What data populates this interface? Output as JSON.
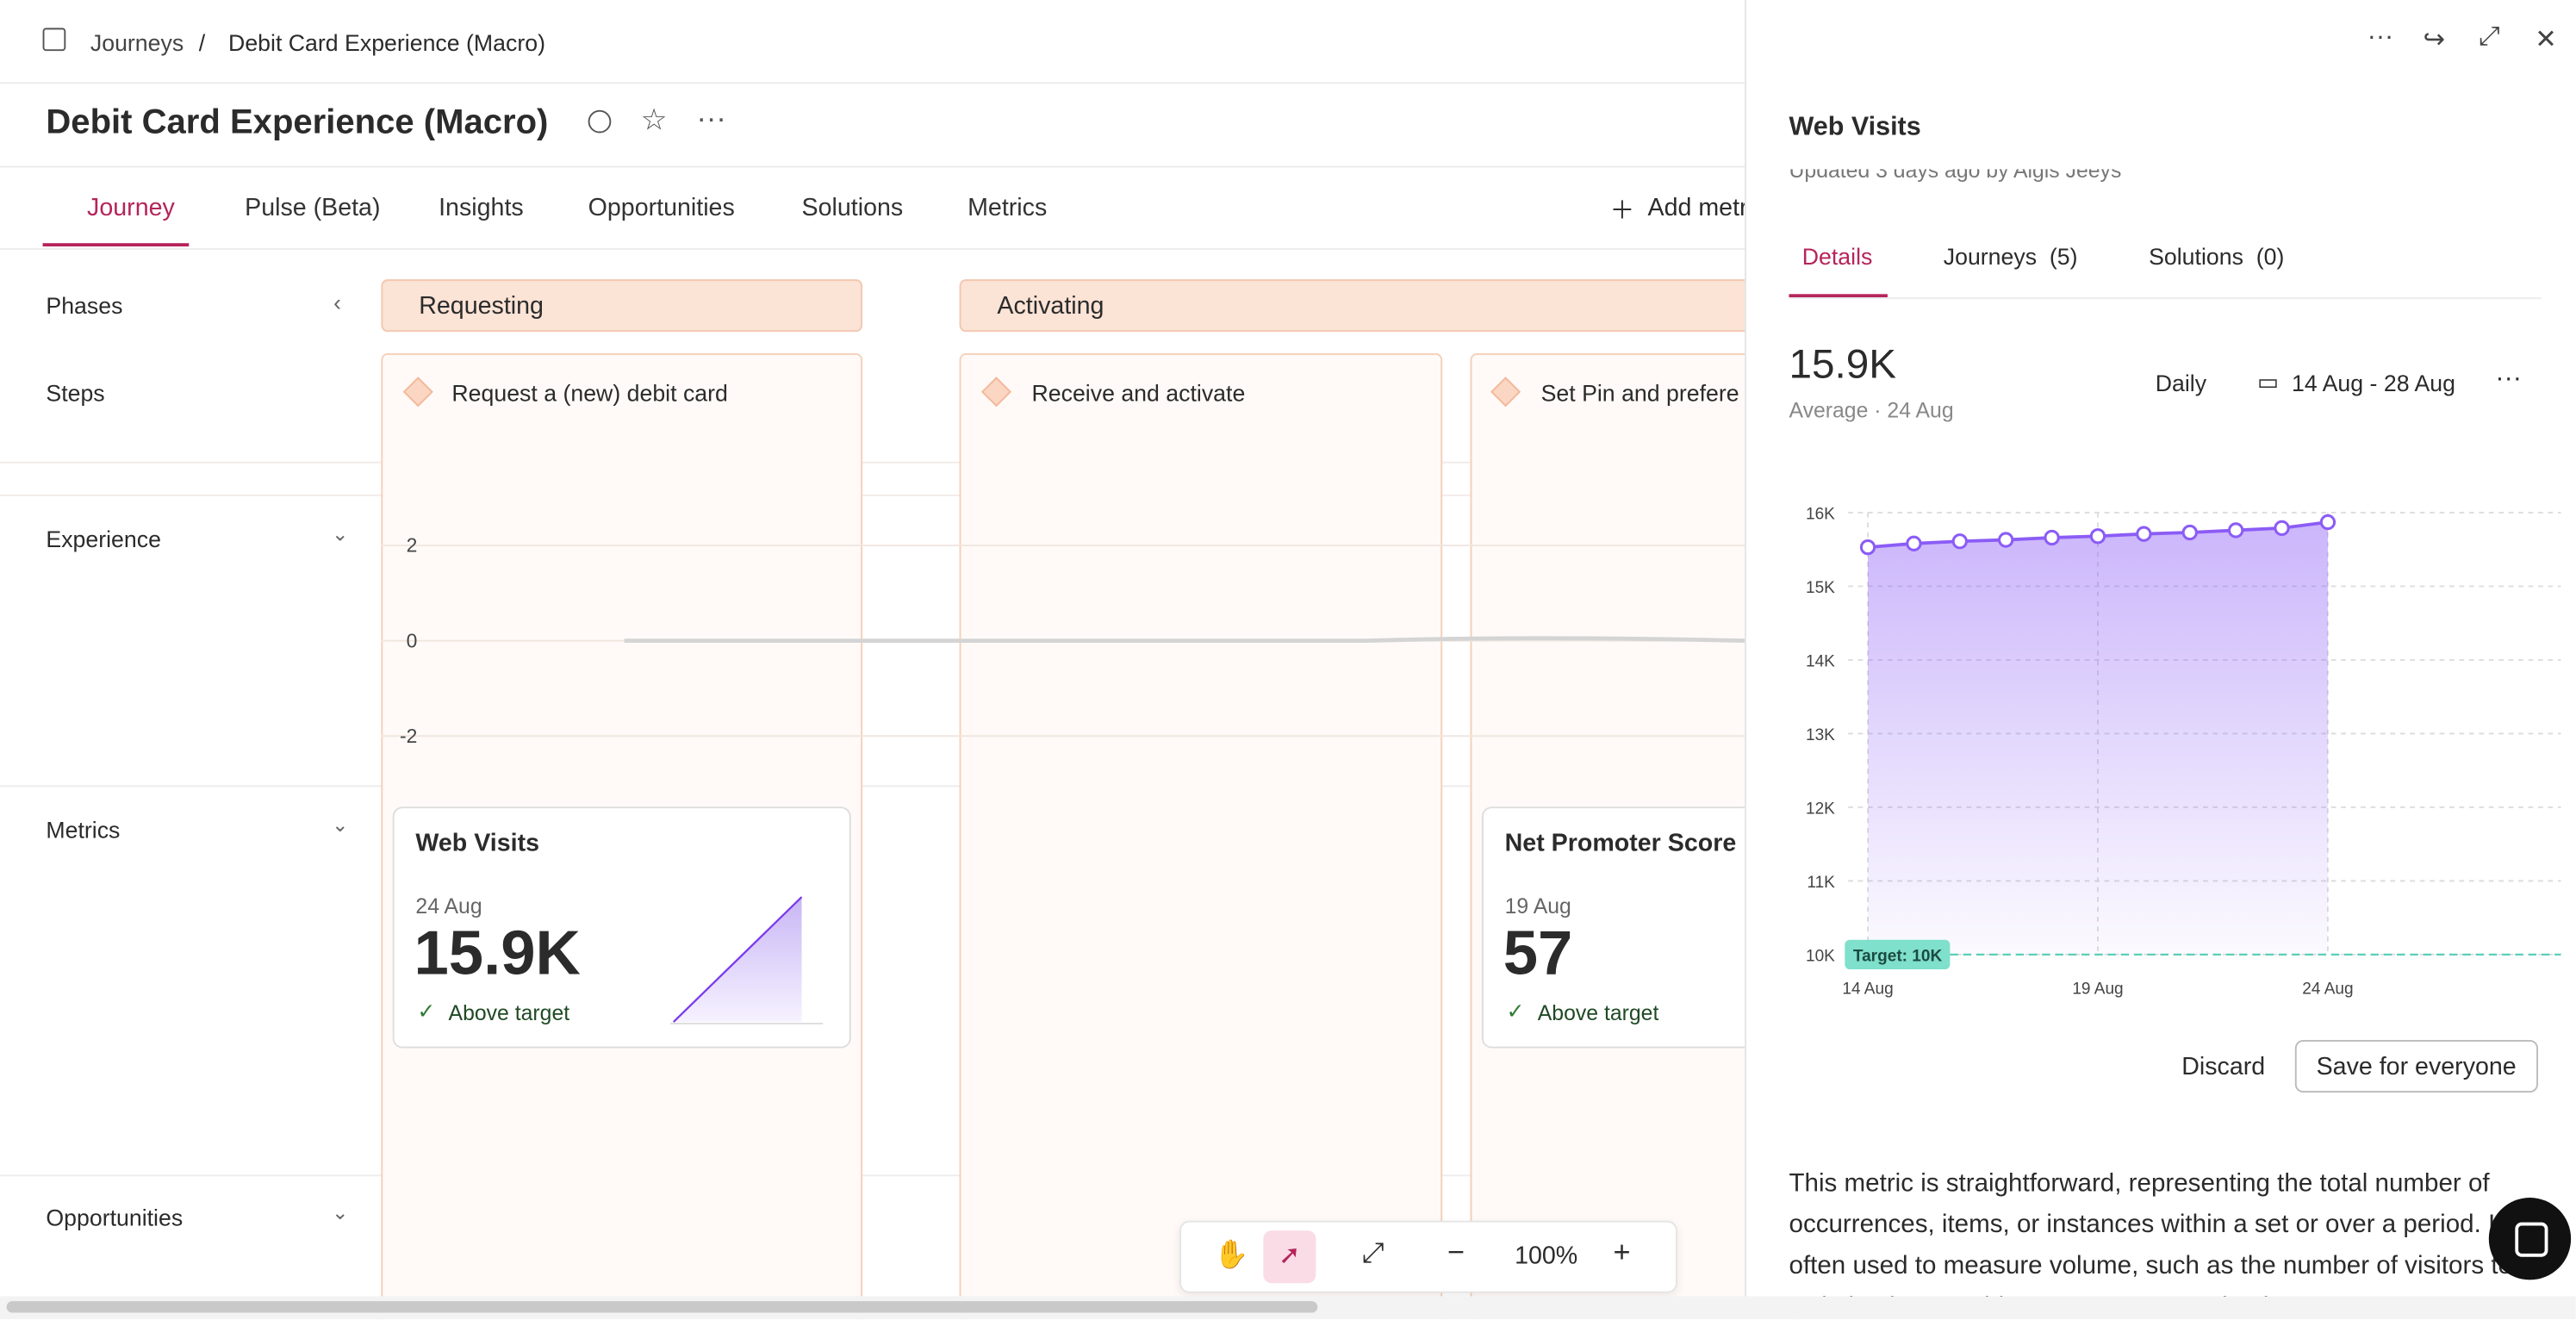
{
  "breadcrumb": [
    "Journeys",
    "Debit Card Experience (Macro)"
  ],
  "title": "Debit Card Experience (Macro)",
  "tabs": [
    "Journey",
    "Pulse (Beta)",
    "Insights",
    "Opportunities",
    "Solutions",
    "Metrics"
  ],
  "add_metric": "Add metr",
  "rows": {
    "phases": "Phases",
    "steps": "Steps",
    "experience": "Experience",
    "metrics": "Metrics",
    "opportunities": "Opportunities"
  },
  "phases": [
    "Requesting",
    "Activating"
  ],
  "steps": [
    "Request a (new) debit card",
    "Receive and activate",
    "Set Pin and prefere"
  ],
  "experience_ticks": [
    2,
    0,
    -2
  ],
  "metric_cards": [
    {
      "name": "Web Visits",
      "date": "24 Aug",
      "value": "15.9K",
      "status": "Above target"
    },
    {
      "name": "Net Promoter Score",
      "date": "19 Aug",
      "value": "57",
      "status": "Above target"
    }
  ],
  "zoom": "100%",
  "panel": {
    "title": "Web Visits",
    "updated": "Updated 3 days ago by Algis Jeeys",
    "tabs": [
      "Details",
      "Journeys  (5)",
      "Solutions  (0)"
    ],
    "summary": {
      "value": "15.9K",
      "caption": "Average · 24 Aug",
      "frequency": "Daily",
      "range": "14 Aug - 28 Aug"
    },
    "chart": {
      "type": "line",
      "categories": [
        "14 Aug",
        null,
        null,
        null,
        null,
        "19 Aug",
        null,
        null,
        null,
        null,
        "24 Aug"
      ],
      "values": [
        15530,
        15580,
        15610,
        15630,
        15660,
        15680,
        15710,
        15730,
        15760,
        15790,
        15870
      ],
      "color": "#8b5cf6",
      "ylim": [
        10000,
        16000
      ],
      "yticks": [
        {
          "value": 10000,
          "label": "10K"
        },
        {
          "value": 11000,
          "label": "11K"
        },
        {
          "value": 12000,
          "label": "12K"
        },
        {
          "value": 13000,
          "label": "13K"
        },
        {
          "value": 14000,
          "label": "14K"
        },
        {
          "value": 15000,
          "label": "15K"
        },
        {
          "value": 16000,
          "label": "16K"
        }
      ],
      "target": {
        "value": 10000,
        "label": "Target: 10K"
      }
    },
    "buttons": [
      "Discard",
      "Save for everyone"
    ],
    "description": "This metric is straightforward, representing the total number of occurrences, items, or instances within a set or over a period. It's often used to measure volume, such as the number of visitors to a website, items sold, or responses received. Its"
  }
}
